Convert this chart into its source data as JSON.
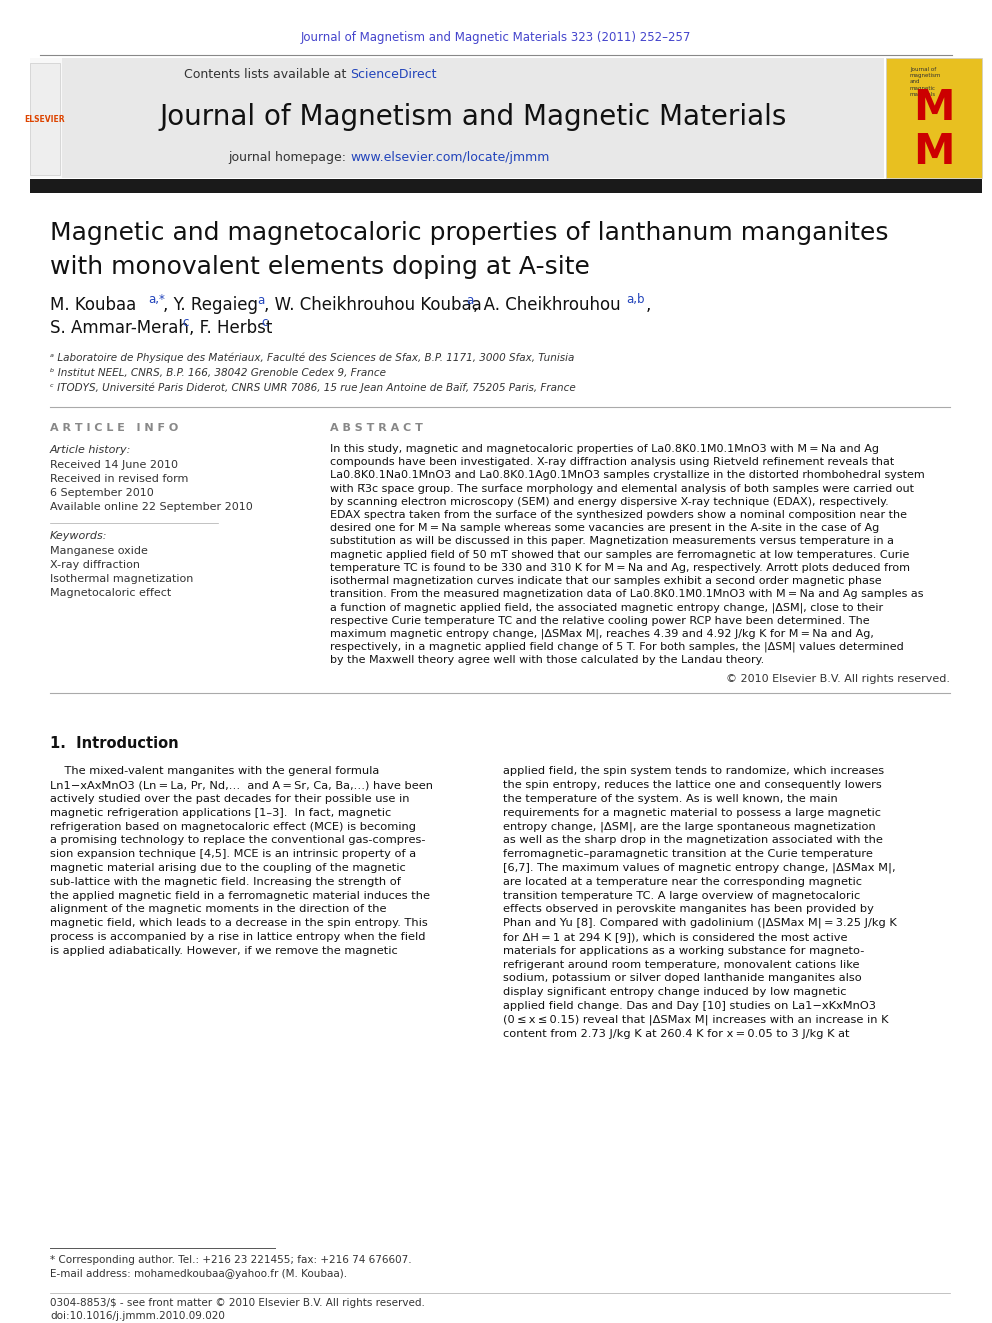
{
  "page_width": 9.92,
  "page_height": 13.23,
  "bg_color": "#ffffff",
  "top_journal_ref": "Journal of Magnetism and Magnetic Materials 323 (2011) 252–257",
  "top_journal_ref_color": "#4444cc",
  "header_bg": "#e8e8e8",
  "sciencedirect_color": "#2244bb",
  "journal_title": "Journal of Magnetism and Magnetic Materials",
  "homepage_url_color": "#2244bb",
  "article_title_line1": "Magnetic and magnetocaloric properties of lanthanum manganites",
  "article_title_line2": "with monovalent elements doping at A-site",
  "affil_a": "ᵃ Laboratoire de Physique des Matériaux, Faculté des Sciences de Sfax, B.P. 1171, 3000 Sfax, Tunisia",
  "affil_b": "ᵇ Institut NEEL, CNRS, B.P. 166, 38042 Grenoble Cedex 9, France",
  "affil_c": "ᶜ ITODYS, Université Paris Diderot, CNRS UMR 7086, 15 rue Jean Antoine de Baïf, 75205 Paris, France",
  "article_info_header": "A R T I C L E   I N F O",
  "article_history_header": "Article history:",
  "article_history": [
    "Received 14 June 2010",
    "Received in revised form",
    "6 September 2010",
    "Available online 22 September 2010"
  ],
  "keywords_header": "Keywords:",
  "keywords": [
    "Manganese oxide",
    "X-ray diffraction",
    "Isothermal magnetization",
    "Magnetocaloric effect"
  ],
  "abstract_header": "A B S T R A C T",
  "abstract_lines": [
    "In this study, magnetic and magnetocaloric properties of La0.8K0.1M0.1MnO3 with M = Na and Ag",
    "compounds have been investigated. X-ray diffraction analysis using Rietveld refinement reveals that",
    "La0.8K0.1Na0.1MnO3 and La0.8K0.1Ag0.1MnO3 samples crystallize in the distorted rhombohedral system",
    "with R̅3c space group. The surface morphology and elemental analysis of both samples were carried out",
    "by scanning electron microscopy (SEM) and energy dispersive X-ray technique (EDAX), respectively.",
    "EDAX spectra taken from the surface of the synthesized powders show a nominal composition near the",
    "desired one for M = Na sample whereas some vacancies are present in the A-site in the case of Ag",
    "substitution as will be discussed in this paper. Magnetization measurements versus temperature in a",
    "magnetic applied field of 50 mT showed that our samples are ferromagnetic at low temperatures. Curie",
    "temperature TC is found to be 330 and 310 K for M = Na and Ag, respectively. Arrott plots deduced from",
    "isothermal magnetization curves indicate that our samples exhibit a second order magnetic phase",
    "transition. From the measured magnetization data of La0.8K0.1M0.1MnO3 with M = Na and Ag samples as",
    "a function of magnetic applied field, the associated magnetic entropy change, |ΔSM|, close to their",
    "respective Curie temperature TC and the relative cooling power RCP have been determined. The",
    "maximum magnetic entropy change, |ΔSMax M|, reaches 4.39 and 4.92 J/kg K for M = Na and Ag,",
    "respectively, in a magnetic applied field change of 5 T. For both samples, the |ΔSM| values determined",
    "by the Maxwell theory agree well with those calculated by the Landau theory."
  ],
  "copyright_line": "© 2010 Elsevier B.V. All rights reserved.",
  "section1_header": "1.  Introduction",
  "intro_col1": [
    "    The mixed-valent manganites with the general formula",
    "Ln1−xAxMnO3 (Ln = La, Pr, Nd,…  and A = Sr, Ca, Ba,…) have been",
    "actively studied over the past decades for their possible use in",
    "magnetic refrigeration applications [1–3].  In fact, magnetic",
    "refrigeration based on magnetocaloric effect (MCE) is becoming",
    "a promising technology to replace the conventional gas-compres-",
    "sion expansion technique [4,5]. MCE is an intrinsic property of a",
    "magnetic material arising due to the coupling of the magnetic",
    "sub-lattice with the magnetic field. Increasing the strength of",
    "the applied magnetic field in a ferromagnetic material induces the",
    "alignment of the magnetic moments in the direction of the",
    "magnetic field, which leads to a decrease in the spin entropy. This",
    "process is accompanied by a rise in lattice entropy when the field",
    "is applied adiabatically. However, if we remove the magnetic"
  ],
  "intro_col2": [
    "applied field, the spin system tends to randomize, which increases",
    "the spin entropy, reduces the lattice one and consequently lowers",
    "the temperature of the system. As is well known, the main",
    "requirements for a magnetic material to possess a large magnetic",
    "entropy change, |ΔSM|, are the large spontaneous magnetization",
    "as well as the sharp drop in the magnetization associated with the",
    "ferromagnetic–paramagnetic transition at the Curie temperature",
    "[6,7]. The maximum values of magnetic entropy change, |ΔSMax M|,",
    "are located at a temperature near the corresponding magnetic",
    "transition temperature TC. A large overview of magnetocaloric",
    "effects observed in perovskite manganites has been provided by",
    "Phan and Yu [8]. Compared with gadolinium (|ΔSMax M| = 3.25 J/kg K",
    "for ΔH = 1 at 294 K [9]), which is considered the most active",
    "materials for applications as a working substance for magneto-",
    "refrigerant around room temperature, monovalent cations like",
    "sodium, potassium or silver doped lanthanide manganites also",
    "display significant entropy change induced by low magnetic",
    "applied field change. Das and Day [10] studies on La1−xKxMnO3",
    "(0 ≤ x ≤ 0.15) reveal that |ΔSMax M| increases with an increase in K",
    "content from 2.73 J/kg K at 260.4 K for x = 0.05 to 3 J/kg K at"
  ],
  "footnote_line1": "* Corresponding author. Tel.: +216 23 221455; fax: +216 74 676607.",
  "footnote_line2": "E-mail address: mohamedkoubaa@yahoo.fr (M. Koubaa).",
  "footer_line1": "0304-8853/$ - see front matter © 2010 Elsevier B.V. All rights reserved.",
  "footer_line2": "doi:10.1016/j.jmmm.2010.09.020"
}
